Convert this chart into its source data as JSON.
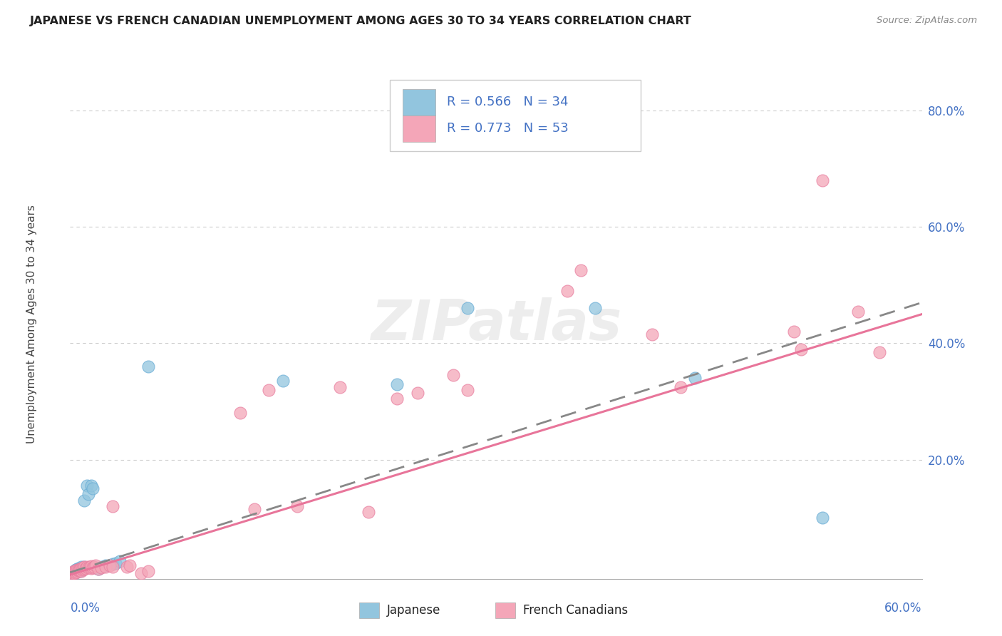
{
  "title": "JAPANESE VS FRENCH CANADIAN UNEMPLOYMENT AMONG AGES 30 TO 34 YEARS CORRELATION CHART",
  "source": "Source: ZipAtlas.com",
  "ylabel": "Unemployment Among Ages 30 to 34 years",
  "right_yticks": [
    "80.0%",
    "60.0%",
    "40.0%",
    "20.0%"
  ],
  "right_ytick_vals": [
    0.8,
    0.6,
    0.4,
    0.2
  ],
  "xlim": [
    0.0,
    0.6
  ],
  "ylim": [
    -0.005,
    0.87
  ],
  "legend_japanese_R": "0.566",
  "legend_japanese_N": "34",
  "legend_french_R": "0.773",
  "legend_french_N": "53",
  "color_japanese": "#92C5DE",
  "color_french": "#F4A6B8",
  "color_blue_text": "#4472C4",
  "watermark": "ZIPatlas",
  "japanese_points": [
    [
      0.001,
      0.002
    ],
    [
      0.002,
      0.005
    ],
    [
      0.003,
      0.004
    ],
    [
      0.003,
      0.008
    ],
    [
      0.004,
      0.006
    ],
    [
      0.004,
      0.01
    ],
    [
      0.005,
      0.009
    ],
    [
      0.005,
      0.012
    ],
    [
      0.006,
      0.01
    ],
    [
      0.006,
      0.013
    ],
    [
      0.007,
      0.008
    ],
    [
      0.007,
      0.012
    ],
    [
      0.008,
      0.011
    ],
    [
      0.008,
      0.015
    ],
    [
      0.009,
      0.014
    ],
    [
      0.01,
      0.016
    ],
    [
      0.01,
      0.13
    ],
    [
      0.012,
      0.155
    ],
    [
      0.013,
      0.14
    ],
    [
      0.015,
      0.155
    ],
    [
      0.016,
      0.15
    ],
    [
      0.02,
      0.012
    ],
    [
      0.022,
      0.015
    ],
    [
      0.025,
      0.018
    ],
    [
      0.03,
      0.02
    ],
    [
      0.032,
      0.022
    ],
    [
      0.035,
      0.025
    ],
    [
      0.055,
      0.36
    ],
    [
      0.15,
      0.335
    ],
    [
      0.23,
      0.33
    ],
    [
      0.28,
      0.46
    ],
    [
      0.37,
      0.46
    ],
    [
      0.44,
      0.34
    ],
    [
      0.53,
      0.1
    ]
  ],
  "french_points": [
    [
      0.001,
      0.003
    ],
    [
      0.002,
      0.004
    ],
    [
      0.002,
      0.007
    ],
    [
      0.003,
      0.005
    ],
    [
      0.003,
      0.008
    ],
    [
      0.004,
      0.006
    ],
    [
      0.004,
      0.009
    ],
    [
      0.005,
      0.007
    ],
    [
      0.005,
      0.01
    ],
    [
      0.006,
      0.009
    ],
    [
      0.006,
      0.011
    ],
    [
      0.007,
      0.01
    ],
    [
      0.007,
      0.012
    ],
    [
      0.008,
      0.008
    ],
    [
      0.008,
      0.013
    ],
    [
      0.009,
      0.01
    ],
    [
      0.009,
      0.014
    ],
    [
      0.01,
      0.012
    ],
    [
      0.01,
      0.015
    ],
    [
      0.011,
      0.013
    ],
    [
      0.012,
      0.016
    ],
    [
      0.013,
      0.014
    ],
    [
      0.014,
      0.015
    ],
    [
      0.015,
      0.013
    ],
    [
      0.015,
      0.017
    ],
    [
      0.016,
      0.014
    ],
    [
      0.017,
      0.016
    ],
    [
      0.018,
      0.018
    ],
    [
      0.02,
      0.012
    ],
    [
      0.022,
      0.014
    ],
    [
      0.025,
      0.016
    ],
    [
      0.028,
      0.018
    ],
    [
      0.03,
      0.015
    ],
    [
      0.03,
      0.12
    ],
    [
      0.04,
      0.015
    ],
    [
      0.042,
      0.018
    ],
    [
      0.05,
      0.005
    ],
    [
      0.055,
      0.008
    ],
    [
      0.12,
      0.28
    ],
    [
      0.13,
      0.115
    ],
    [
      0.14,
      0.32
    ],
    [
      0.16,
      0.12
    ],
    [
      0.19,
      0.325
    ],
    [
      0.21,
      0.11
    ],
    [
      0.23,
      0.305
    ],
    [
      0.245,
      0.315
    ],
    [
      0.27,
      0.345
    ],
    [
      0.28,
      0.32
    ],
    [
      0.35,
      0.49
    ],
    [
      0.36,
      0.525
    ],
    [
      0.41,
      0.415
    ],
    [
      0.43,
      0.325
    ],
    [
      0.51,
      0.42
    ],
    [
      0.515,
      0.39
    ],
    [
      0.53,
      0.68
    ],
    [
      0.555,
      0.455
    ],
    [
      0.57,
      0.385
    ]
  ],
  "jap_reg_line": [
    [
      0.0,
      0.006
    ],
    [
      0.6,
      0.47
    ]
  ],
  "french_reg_line": [
    [
      0.0,
      0.002
    ],
    [
      0.6,
      0.45
    ]
  ]
}
